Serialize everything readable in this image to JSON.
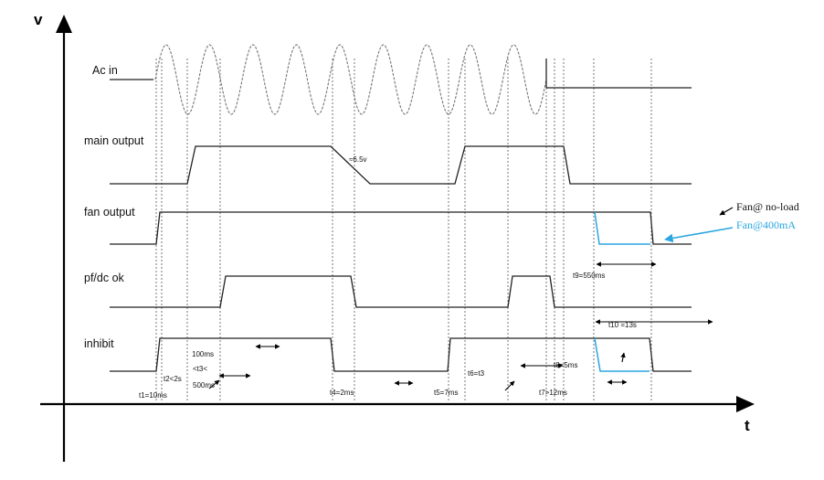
{
  "axes": {
    "y_label": "v",
    "x_label": "t"
  },
  "signals": {
    "ac_in": "Ac in",
    "main_output": "main output",
    "fan_output": "fan output",
    "pf_dc_ok": "pf/dc ok",
    "inhibit": "inhibit"
  },
  "annotations": {
    "v65": "≈6.5v",
    "t1": "t1=10ms",
    "t2": "t2<2s",
    "t3_line1": "100ms",
    "t3_line2": "<t3<",
    "t3_line3": "500ms",
    "t4": "t4=2ms",
    "t5": "t5=7ms",
    "t6": "t6=t3",
    "t8": "t8=5ms",
    "t7": "t7>12ms",
    "t9": "t9=550ms",
    "t10": "t10 =13s"
  },
  "legend": {
    "no_load": "Fan@ no-load",
    "load": "Fan@400mA",
    "load_color": "#2aa6e0"
  }
}
